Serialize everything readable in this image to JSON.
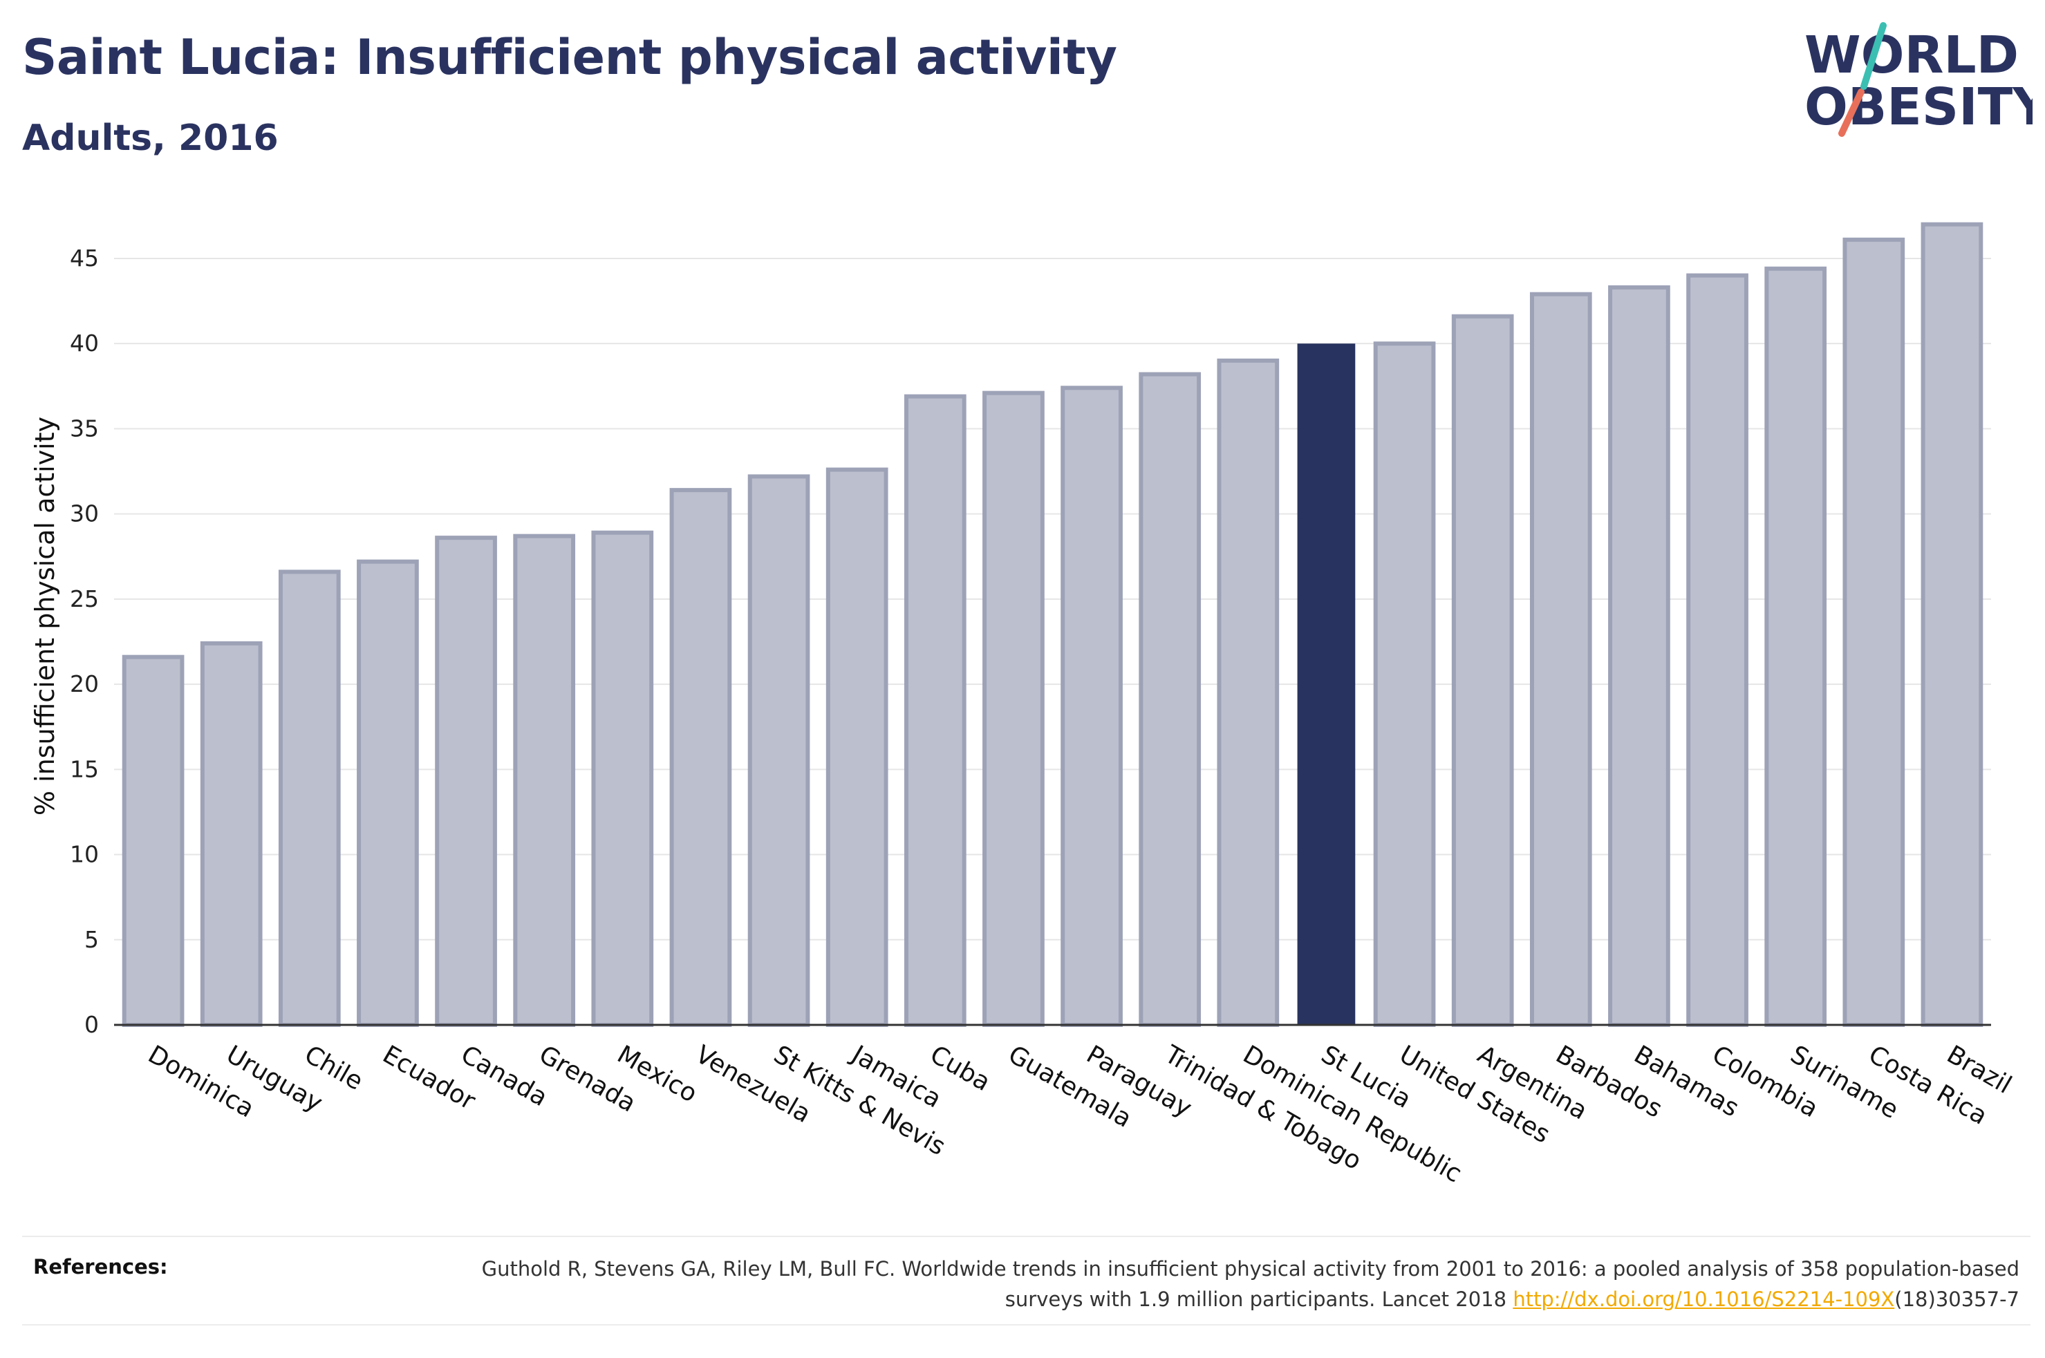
{
  "header": {
    "title": "Saint Lucia: Insufficient physical activity",
    "subtitle": "Adults, 2016"
  },
  "logo": {
    "line1": "WORLD",
    "line2": "OBESITY"
  },
  "colors": {
    "title": "#2a3360",
    "bar_fill": "#bcbfcd",
    "bar_stroke": "#9da2b7",
    "highlight": "#29335f",
    "logo_teal": "#3bbfb2",
    "logo_coral": "#e8705a",
    "link": "#f2a900"
  },
  "chart_data": {
    "type": "bar",
    "ylabel": "% insufficient physical activity",
    "ylim": [
      0,
      48
    ],
    "yticks": [
      0,
      5,
      10,
      15,
      20,
      25,
      30,
      35,
      40,
      45
    ],
    "grid": true,
    "highlight": "St Lucia",
    "categories": [
      "Dominica",
      "Uruguay",
      "Chile",
      "Ecuador",
      "Canada",
      "Grenada",
      "Mexico",
      "Venezuela",
      "St Kitts & Nevis",
      "Jamaica",
      "Cuba",
      "Guatemala",
      "Paraguay",
      "Trinidad & Tobago",
      "Dominican Republic",
      "St Lucia",
      "United States",
      "Argentina",
      "Barbados",
      "Bahamas",
      "Colombia",
      "Suriname",
      "Costa Rica",
      "Brazil"
    ],
    "values": [
      21.6,
      22.4,
      26.6,
      27.2,
      28.6,
      28.7,
      28.9,
      31.4,
      32.2,
      32.6,
      36.9,
      37.1,
      37.4,
      38.2,
      39.0,
      40.0,
      40.0,
      41.6,
      42.9,
      43.3,
      44.0,
      44.4,
      46.1,
      47.0
    ]
  },
  "references": {
    "label": "References:",
    "text": "Guthold R, Stevens GA, Riley LM, Bull FC. Worldwide trends in insufficient physical activity from 2001 to 2016: a pooled analysis of 358 population-based surveys with 1.9 million participants. Lancet 2018",
    "link": "http://dx.doi.org/10.1016/S2214-109X",
    "suffix": "(18)30357-7"
  }
}
